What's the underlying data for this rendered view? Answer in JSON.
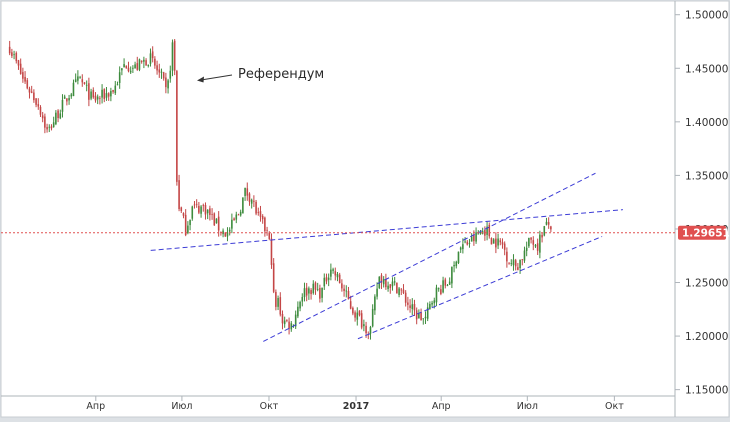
{
  "chart_data": {
    "type": "candlestick",
    "x_axis_ticks": [
      "Апр",
      "Июл",
      "Окт",
      "2017",
      "Апр",
      "Июл",
      "Окт"
    ],
    "y_axis_ticks": [
      "1.50000",
      "1.45000",
      "1.40000",
      "1.35000",
      "1.30000",
      "1.25000",
      "1.20000",
      "1.15000"
    ],
    "ylim": [
      1.145,
      1.51
    ],
    "current_price": "1.29651",
    "annotation": "Референдум",
    "colors": {
      "up": "#3d8b3d",
      "down": "#c44646",
      "trendline": "#3d3dd6",
      "price_line": "#e05050",
      "price_badge": "#e05050"
    },
    "trendlines": [
      {
        "from": [
          "2016-05-29",
          1.28
        ],
        "to": [
          "2017-10-10",
          1.318
        ]
      },
      {
        "from": [
          "2016-09-25",
          1.195
        ],
        "to": [
          "2017-09-11",
          1.352
        ]
      },
      {
        "from": [
          "2017-01-03",
          1.1975
        ],
        "to": [
          "2017-09-18",
          1.293
        ]
      }
    ],
    "price_path": [
      [
        "2016-01-01",
        1.47
      ],
      [
        "2016-01-15",
        1.44
      ],
      [
        "2016-02-01",
        1.415
      ],
      [
        "2016-02-10",
        1.39
      ],
      [
        "2016-02-22",
        1.41
      ],
      [
        "2016-03-07",
        1.43
      ],
      [
        "2016-03-15",
        1.44
      ],
      [
        "2016-03-29",
        1.42
      ],
      [
        "2016-04-10",
        1.425
      ],
      [
        "2016-04-20",
        1.43
      ],
      [
        "2016-05-02",
        1.455
      ],
      [
        "2016-05-12",
        1.45
      ],
      [
        "2016-05-28",
        1.46
      ],
      [
        "2016-06-10",
        1.44
      ],
      [
        "2016-06-15",
        1.425
      ],
      [
        "2016-06-20",
        1.462
      ],
      [
        "2016-06-23",
        1.49
      ],
      [
        "2016-06-24",
        1.37
      ],
      [
        "2016-06-27",
        1.325
      ],
      [
        "2016-07-05",
        1.3
      ],
      [
        "2016-07-12",
        1.32
      ],
      [
        "2016-07-25",
        1.32
      ],
      [
        "2016-08-10",
        1.3
      ],
      [
        "2016-08-18",
        1.295
      ],
      [
        "2016-08-30",
        1.315
      ],
      [
        "2016-09-06",
        1.335
      ],
      [
        "2016-09-12",
        1.33
      ],
      [
        "2016-09-20",
        1.31
      ],
      [
        "2016-09-30",
        1.295
      ],
      [
        "2016-10-04",
        1.27
      ],
      [
        "2016-10-07",
        1.22
      ],
      [
        "2016-10-10",
        1.235
      ],
      [
        "2016-10-15",
        1.215
      ],
      [
        "2016-10-25",
        1.21
      ],
      [
        "2016-11-05",
        1.24
      ],
      [
        "2016-11-15",
        1.245
      ],
      [
        "2016-11-25",
        1.24
      ],
      [
        "2016-12-05",
        1.265
      ],
      [
        "2016-12-15",
        1.25
      ],
      [
        "2016-12-28",
        1.225
      ],
      [
        "2017-01-10",
        1.21
      ],
      [
        "2017-01-16",
        1.205
      ],
      [
        "2017-01-25",
        1.255
      ],
      [
        "2017-02-05",
        1.25
      ],
      [
        "2017-02-15",
        1.245
      ],
      [
        "2017-02-25",
        1.23
      ],
      [
        "2017-03-05",
        1.22
      ],
      [
        "2017-03-15",
        1.215
      ],
      [
        "2017-03-25",
        1.24
      ],
      [
        "2017-04-08",
        1.25
      ],
      [
        "2017-04-15",
        1.265
      ],
      [
        "2017-04-18",
        1.28
      ],
      [
        "2017-04-25",
        1.285
      ],
      [
        "2017-05-05",
        1.29
      ],
      [
        "2017-05-10",
        1.295
      ],
      [
        "2017-05-18",
        1.3
      ],
      [
        "2017-05-25",
        1.29
      ],
      [
        "2017-06-05",
        1.285
      ],
      [
        "2017-06-12",
        1.27
      ],
      [
        "2017-06-20",
        1.265
      ],
      [
        "2017-06-26",
        1.275
      ],
      [
        "2017-07-05",
        1.29
      ],
      [
        "2017-07-12",
        1.285
      ],
      [
        "2017-07-18",
        1.3
      ],
      [
        "2017-07-25",
        1.305
      ],
      [
        "2017-07-28",
        1.29651
      ]
    ],
    "grid": false
  }
}
